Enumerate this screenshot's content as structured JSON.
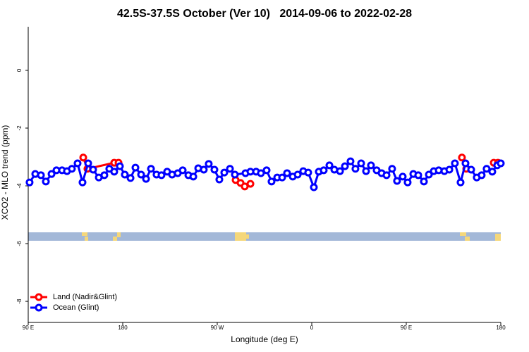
{
  "chart_data": {
    "type": "line",
    "title": "42.5S-37.5S October (Ver 10)   2014-09-06 to 2022-02-28",
    "x_label": "Longitude (deg E)",
    "y_label": "XCO2 - MLO trend (ppm)",
    "xlim": [
      90,
      540
    ],
    "ylim": [
      -8.73,
      1.51
    ],
    "xticks": [
      {
        "value": 90,
        "label": "90 E"
      },
      180,
      {
        "value": 270,
        "label": "90 W"
      },
      {
        "value": 360,
        "label": "0"
      },
      {
        "value": 450,
        "label": "90 E"
      },
      {
        "value": 540,
        "label": "180"
      }
    ],
    "yticks": [
      0,
      -2,
      -4,
      -6,
      -8
    ],
    "legend": "bottom-left",
    "series": [
      {
        "name": "Land (Nadir&Glint)",
        "color": "#ff0000",
        "x": [
          142.4,
          146.4,
          171.9,
          176,
          230,
          287.5,
          292.2,
          296.2,
          301.6,
          400,
          503,
          507.1,
          520,
          533.3,
          537.3
        ],
        "values": [
          -3.02,
          -3.41,
          -3.2,
          -3.2,
          null,
          -3.8,
          -3.9,
          -4.02,
          -3.93,
          null,
          -3.02,
          -3.41,
          null,
          -3.2,
          -3.2
        ]
      },
      {
        "name": "Ocean (Glint)",
        "color": "#0000ff",
        "x": [
          91.3,
          96.7,
          102.1,
          106.8,
          112.2,
          116.9,
          122.2,
          126.9,
          131.6,
          137.0,
          141.7,
          147.1,
          151.8,
          157.2,
          162.5,
          167.2,
          171.9,
          177.3,
          182.0,
          187.4,
          192.1,
          197.5,
          202.2,
          206.9,
          212.2,
          216.9,
          222.3,
          227.0,
          232.4,
          237.1,
          242.5,
          247.2,
          251.9,
          257.2,
          261.9,
          267.3,
          272.0,
          276.7,
          282.1,
          286.8,
          296.9,
          301.6,
          307.0,
          311.6,
          317.0,
          321.7,
          327.1,
          331.8,
          336.5,
          341.9,
          346.6,
          351.9,
          356.6,
          362.0,
          366.7,
          371.4,
          376.8,
          381.5,
          386.9,
          391.6,
          396.9,
          401.6,
          407.0,
          411.7,
          416.4,
          421.8,
          426.5,
          431.2,
          436.5,
          441.2,
          446.6,
          451.3,
          456.7,
          461.4,
          466.8,
          471.5,
          476.2,
          480.9,
          486.3,
          491.0,
          496.3,
          501.7,
          506.4,
          511.8,
          517.1,
          521.8,
          526.5,
          531.9,
          536.6,
          540
        ],
        "values": [
          -3.88,
          -3.59,
          -3.63,
          -3.85,
          -3.59,
          -3.46,
          -3.46,
          -3.49,
          -3.41,
          -3.22,
          -3.88,
          -3.22,
          -3.44,
          -3.71,
          -3.63,
          -3.41,
          -3.51,
          -3.32,
          -3.61,
          -3.73,
          -3.37,
          -3.61,
          -3.76,
          -3.41,
          -3.61,
          -3.63,
          -3.51,
          -3.61,
          -3.56,
          -3.46,
          -3.63,
          -3.68,
          -3.39,
          -3.44,
          -3.24,
          -3.44,
          -3.78,
          -3.54,
          -3.41,
          -3.61,
          -3.56,
          -3.51,
          -3.51,
          -3.56,
          -3.46,
          -3.85,
          -3.71,
          -3.71,
          -3.56,
          -3.68,
          -3.61,
          -3.49,
          -3.54,
          -4.05,
          -3.51,
          -3.46,
          -3.29,
          -3.44,
          -3.49,
          -3.32,
          -3.15,
          -3.41,
          -3.22,
          -3.49,
          -3.29,
          -3.46,
          -3.56,
          -3.63,
          -3.41,
          -3.83,
          -3.68,
          -3.88,
          -3.59,
          -3.63,
          -3.85,
          -3.61,
          -3.49,
          -3.46,
          -3.49,
          -3.44,
          -3.22,
          -3.88,
          -3.22,
          -3.44,
          -3.71,
          -3.63,
          -3.41,
          -3.51,
          -3.29,
          -3.22
        ]
      }
    ]
  }
}
